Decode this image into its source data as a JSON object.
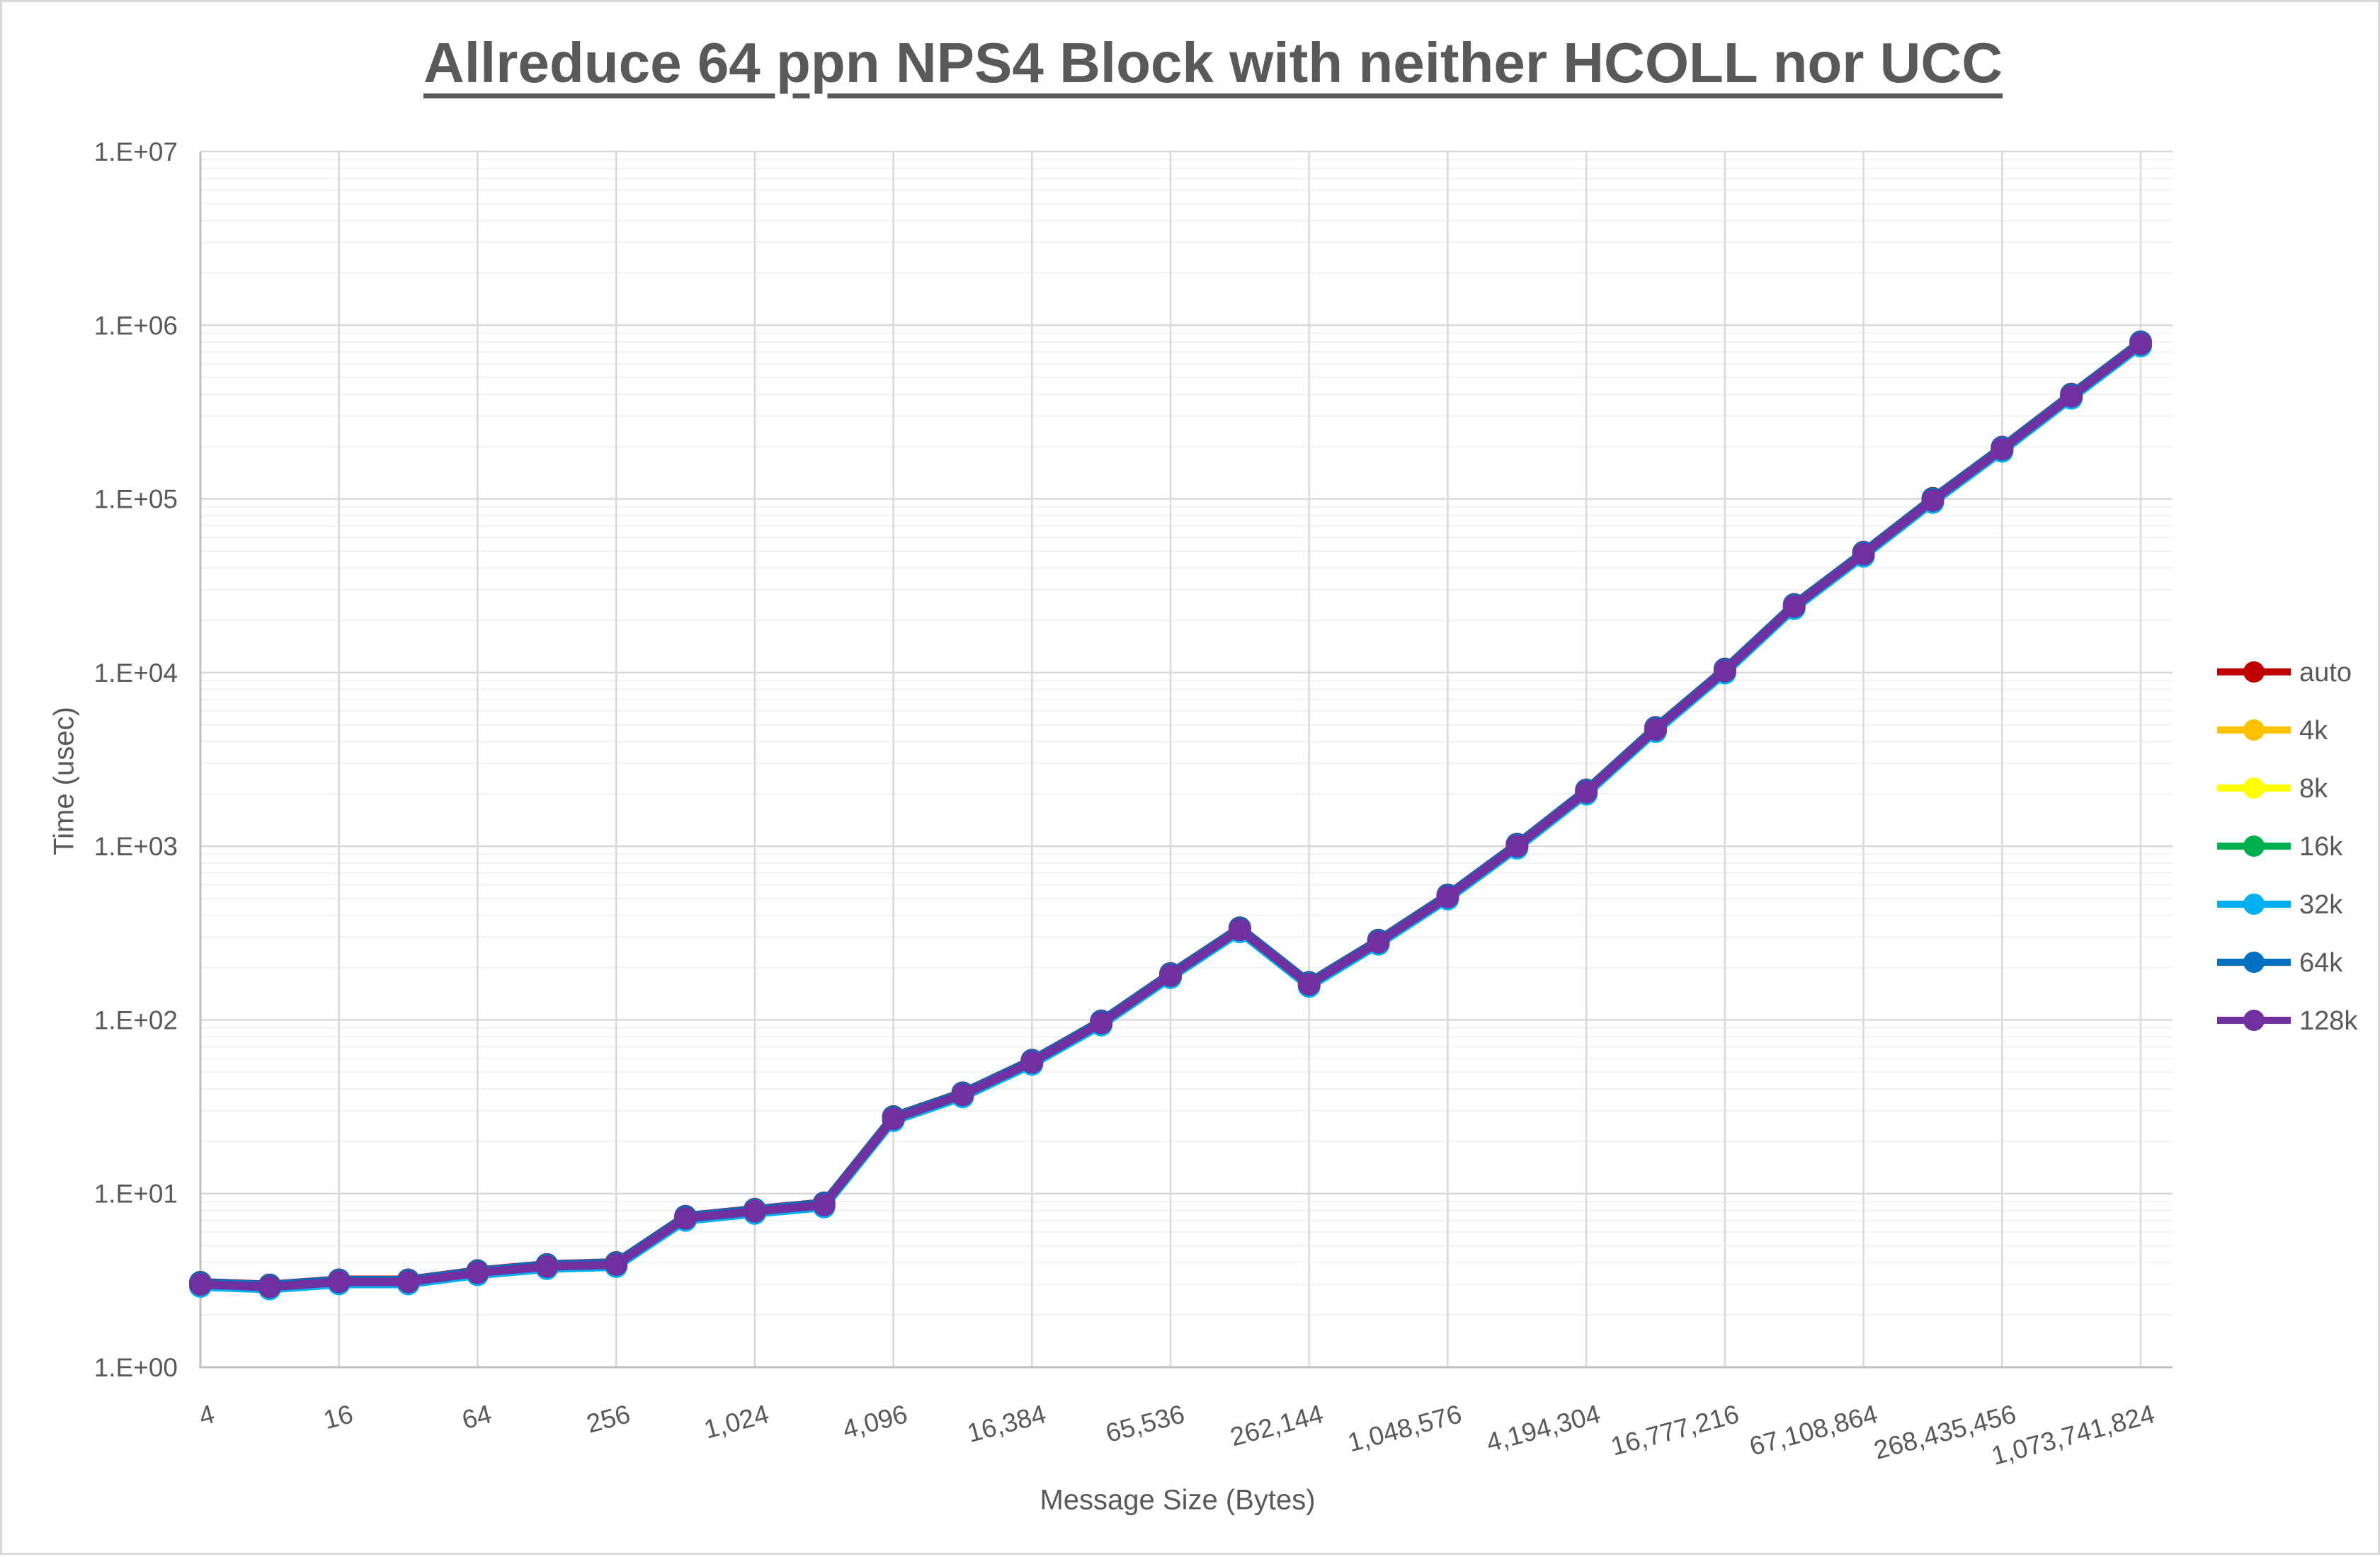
{
  "title": "Allreduce 64 ppn NPS4 Block with neither HCOLL nor UCC",
  "chart_data": {
    "type": "line",
    "title": "Allreduce 64 ppn NPS4 Block with neither HCOLL nor UCC",
    "xlabel": "Message Size (Bytes)",
    "ylabel": "Time (usec)",
    "x_scale": "log2",
    "y_scale": "log10",
    "y_range": [
      1,
      10000000
    ],
    "x_range": [
      4,
      1073741824
    ],
    "grid": "major-and-minor-horizontal, major-vertical",
    "legend_position": "right",
    "x_values_bytes": [
      4,
      8,
      16,
      32,
      64,
      128,
      256,
      512,
      1024,
      2048,
      4096,
      8192,
      16384,
      32768,
      65536,
      131072,
      262144,
      524288,
      1048576,
      2097152,
      4194304,
      8388608,
      16777216,
      33554432,
      67108864,
      134217728,
      268435456,
      536870912,
      1073741824
    ],
    "x_tick_labels": [
      "4",
      "16",
      "64",
      "256",
      "1,024",
      "4,096",
      "16,384",
      "65,536",
      "262,144",
      "1,048,576",
      "4,194,304",
      "16,777,216",
      "67,108,864",
      "268,435,456",
      "1,073,741,824"
    ],
    "y_tick_labels": [
      "1.E+00",
      "1.E+01",
      "1.E+02",
      "1.E+03",
      "1.E+04",
      "1.E+05",
      "1.E+06",
      "1.E+07"
    ],
    "series_overlap_note": "all seven series plot essentially identical values; purple 128k drawn on top",
    "shared_values_usec": [
      3.0,
      2.9,
      3.1,
      3.1,
      3.5,
      3.8,
      3.9,
      7.2,
      7.9,
      8.6,
      27,
      37,
      57,
      96,
      180,
      330,
      160,
      280,
      510,
      1000,
      2050,
      4700,
      10200,
      24000,
      48000,
      98000,
      193000,
      390000,
      780000
    ],
    "series": [
      {
        "name": "auto",
        "color": "#C00000"
      },
      {
        "name": "4k",
        "color": "#FFC000"
      },
      {
        "name": "8k",
        "color": "#FFFF00"
      },
      {
        "name": "16k",
        "color": "#00B050"
      },
      {
        "name": "32k",
        "color": "#00B0F0"
      },
      {
        "name": "64k",
        "color": "#0070C0"
      },
      {
        "name": "128k",
        "color": "#7030A0"
      }
    ]
  }
}
